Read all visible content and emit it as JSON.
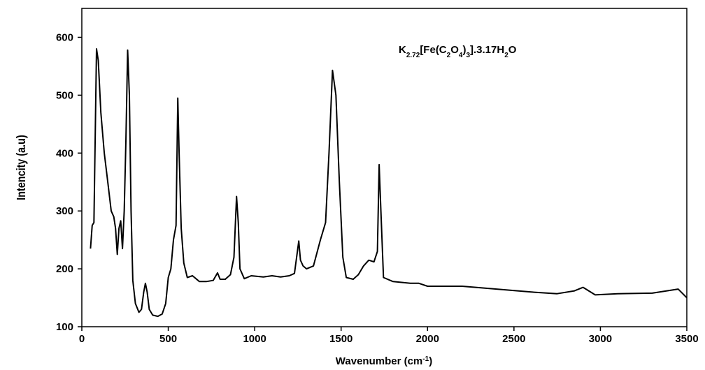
{
  "chart_data": {
    "type": "line",
    "xlabel": [
      {
        "text": "Wavenumber (cm"
      },
      {
        "text": "-1",
        "sup": true
      },
      {
        "text": ")"
      }
    ],
    "ylabel": "Intencity (a.u)",
    "annotation": [
      {
        "text": "K"
      },
      {
        "text": "2.72",
        "sub": true
      },
      {
        "text": "[Fe(C"
      },
      {
        "text": "2",
        "sub": true
      },
      {
        "text": "O"
      },
      {
        "text": "4",
        "sub": true
      },
      {
        "text": ")"
      },
      {
        "text": "3",
        "sub": true
      },
      {
        "text": "].3.17H"
      },
      {
        "text": "2",
        "sub": true
      },
      {
        "text": "O"
      }
    ],
    "color": "#000000",
    "xlim": [
      0,
      3500
    ],
    "ylim": [
      100,
      650
    ],
    "xticks": [
      0,
      500,
      1000,
      1500,
      2000,
      2500,
      3000,
      3500
    ],
    "yticks": [
      100,
      200,
      300,
      400,
      500,
      600
    ],
    "x": [
      50,
      60,
      70,
      85,
      95,
      110,
      130,
      150,
      170,
      185,
      195,
      205,
      215,
      225,
      235,
      245,
      255,
      265,
      275,
      285,
      295,
      310,
      330,
      345,
      358,
      368,
      378,
      390,
      410,
      440,
      465,
      485,
      500,
      515,
      530,
      545,
      555,
      563,
      575,
      590,
      610,
      640,
      680,
      720,
      760,
      785,
      800,
      830,
      860,
      880,
      895,
      905,
      915,
      940,
      980,
      1050,
      1100,
      1150,
      1200,
      1230,
      1255,
      1265,
      1280,
      1300,
      1340,
      1380,
      1410,
      1430,
      1450,
      1470,
      1490,
      1510,
      1530,
      1570,
      1600,
      1630,
      1660,
      1690,
      1710,
      1720,
      1730,
      1745,
      1800,
      1900,
      1950,
      2000,
      2200,
      2400,
      2600,
      2750,
      2850,
      2900,
      2970,
      3100,
      3300,
      3450,
      3500
    ],
    "values": [
      235,
      275,
      280,
      580,
      560,
      470,
      400,
      350,
      300,
      290,
      270,
      225,
      270,
      283,
      235,
      300,
      420,
      578,
      500,
      300,
      180,
      140,
      125,
      130,
      160,
      175,
      160,
      130,
      120,
      118,
      122,
      140,
      185,
      200,
      250,
      275,
      495,
      400,
      270,
      210,
      185,
      188,
      178,
      178,
      180,
      193,
      182,
      182,
      190,
      220,
      325,
      280,
      200,
      183,
      188,
      186,
      188,
      186,
      188,
      192,
      248,
      215,
      205,
      200,
      205,
      250,
      280,
      400,
      543,
      500,
      350,
      220,
      185,
      182,
      190,
      205,
      215,
      212,
      230,
      380,
      300,
      185,
      178,
      175,
      175,
      170,
      170,
      165,
      160,
      157,
      162,
      168,
      155,
      157,
      158,
      165,
      150
    ]
  }
}
